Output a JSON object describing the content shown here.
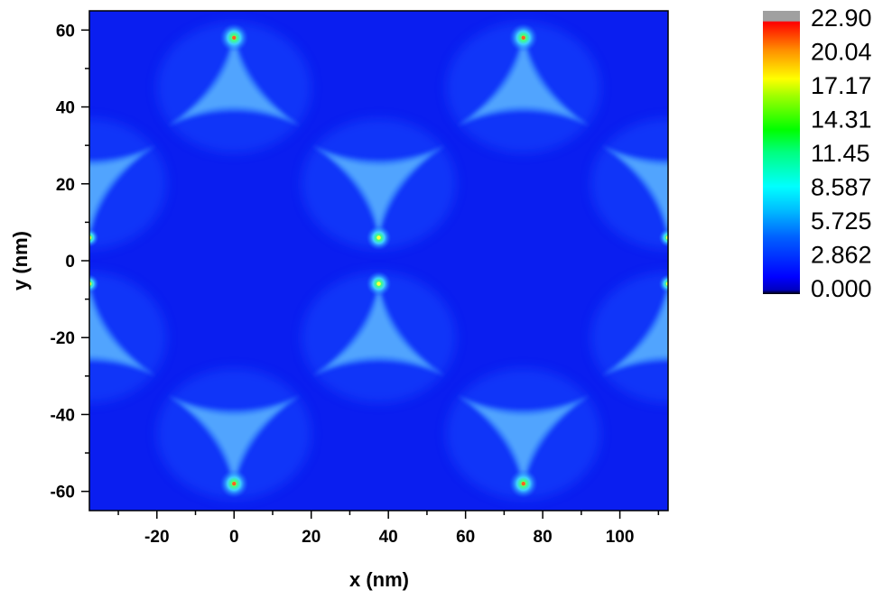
{
  "chart_data": {
    "type": "heatmap",
    "title": "",
    "xlabel": "x (nm)",
    "ylabel": "y (nm)",
    "xlim": [
      -37.5,
      112.5
    ],
    "ylim": [
      -65,
      65
    ],
    "x_ticks": [
      -20,
      0,
      20,
      40,
      60,
      80,
      100
    ],
    "y_ticks": [
      -60,
      -40,
      -20,
      0,
      20,
      40,
      60
    ],
    "grid": false,
    "colorbar": {
      "position": "right",
      "labels": [
        "22.90",
        "20.04",
        "17.17",
        "14.31",
        "11.45",
        "8.587",
        "5.725",
        "2.862",
        "0.000"
      ],
      "range": [
        0.0,
        22.9
      ],
      "colors": [
        "#000000",
        "#0000ff",
        "#0090ff",
        "#00ffff",
        "#00ff00",
        "#ffff00",
        "#ff8000",
        "#ff0000",
        "#a0a0a0"
      ]
    },
    "hotspots": [
      {
        "x": 0,
        "y": 58,
        "value": 22.9
      },
      {
        "x": 75,
        "y": 58,
        "value": 22.9
      },
      {
        "x": 0,
        "y": -58,
        "value": 22.9
      },
      {
        "x": 75,
        "y": -58,
        "value": 22.9
      },
      {
        "x": 37.5,
        "y": 6,
        "value": 20.0
      },
      {
        "x": 37.5,
        "y": -6,
        "value": 20.0
      },
      {
        "x": -37.5,
        "y": 6,
        "value": 15.0
      },
      {
        "x": -37.5,
        "y": -6,
        "value": 15.0
      },
      {
        "x": 112.5,
        "y": 6,
        "value": 15.0
      },
      {
        "x": 112.5,
        "y": -6,
        "value": 15.0
      }
    ]
  }
}
